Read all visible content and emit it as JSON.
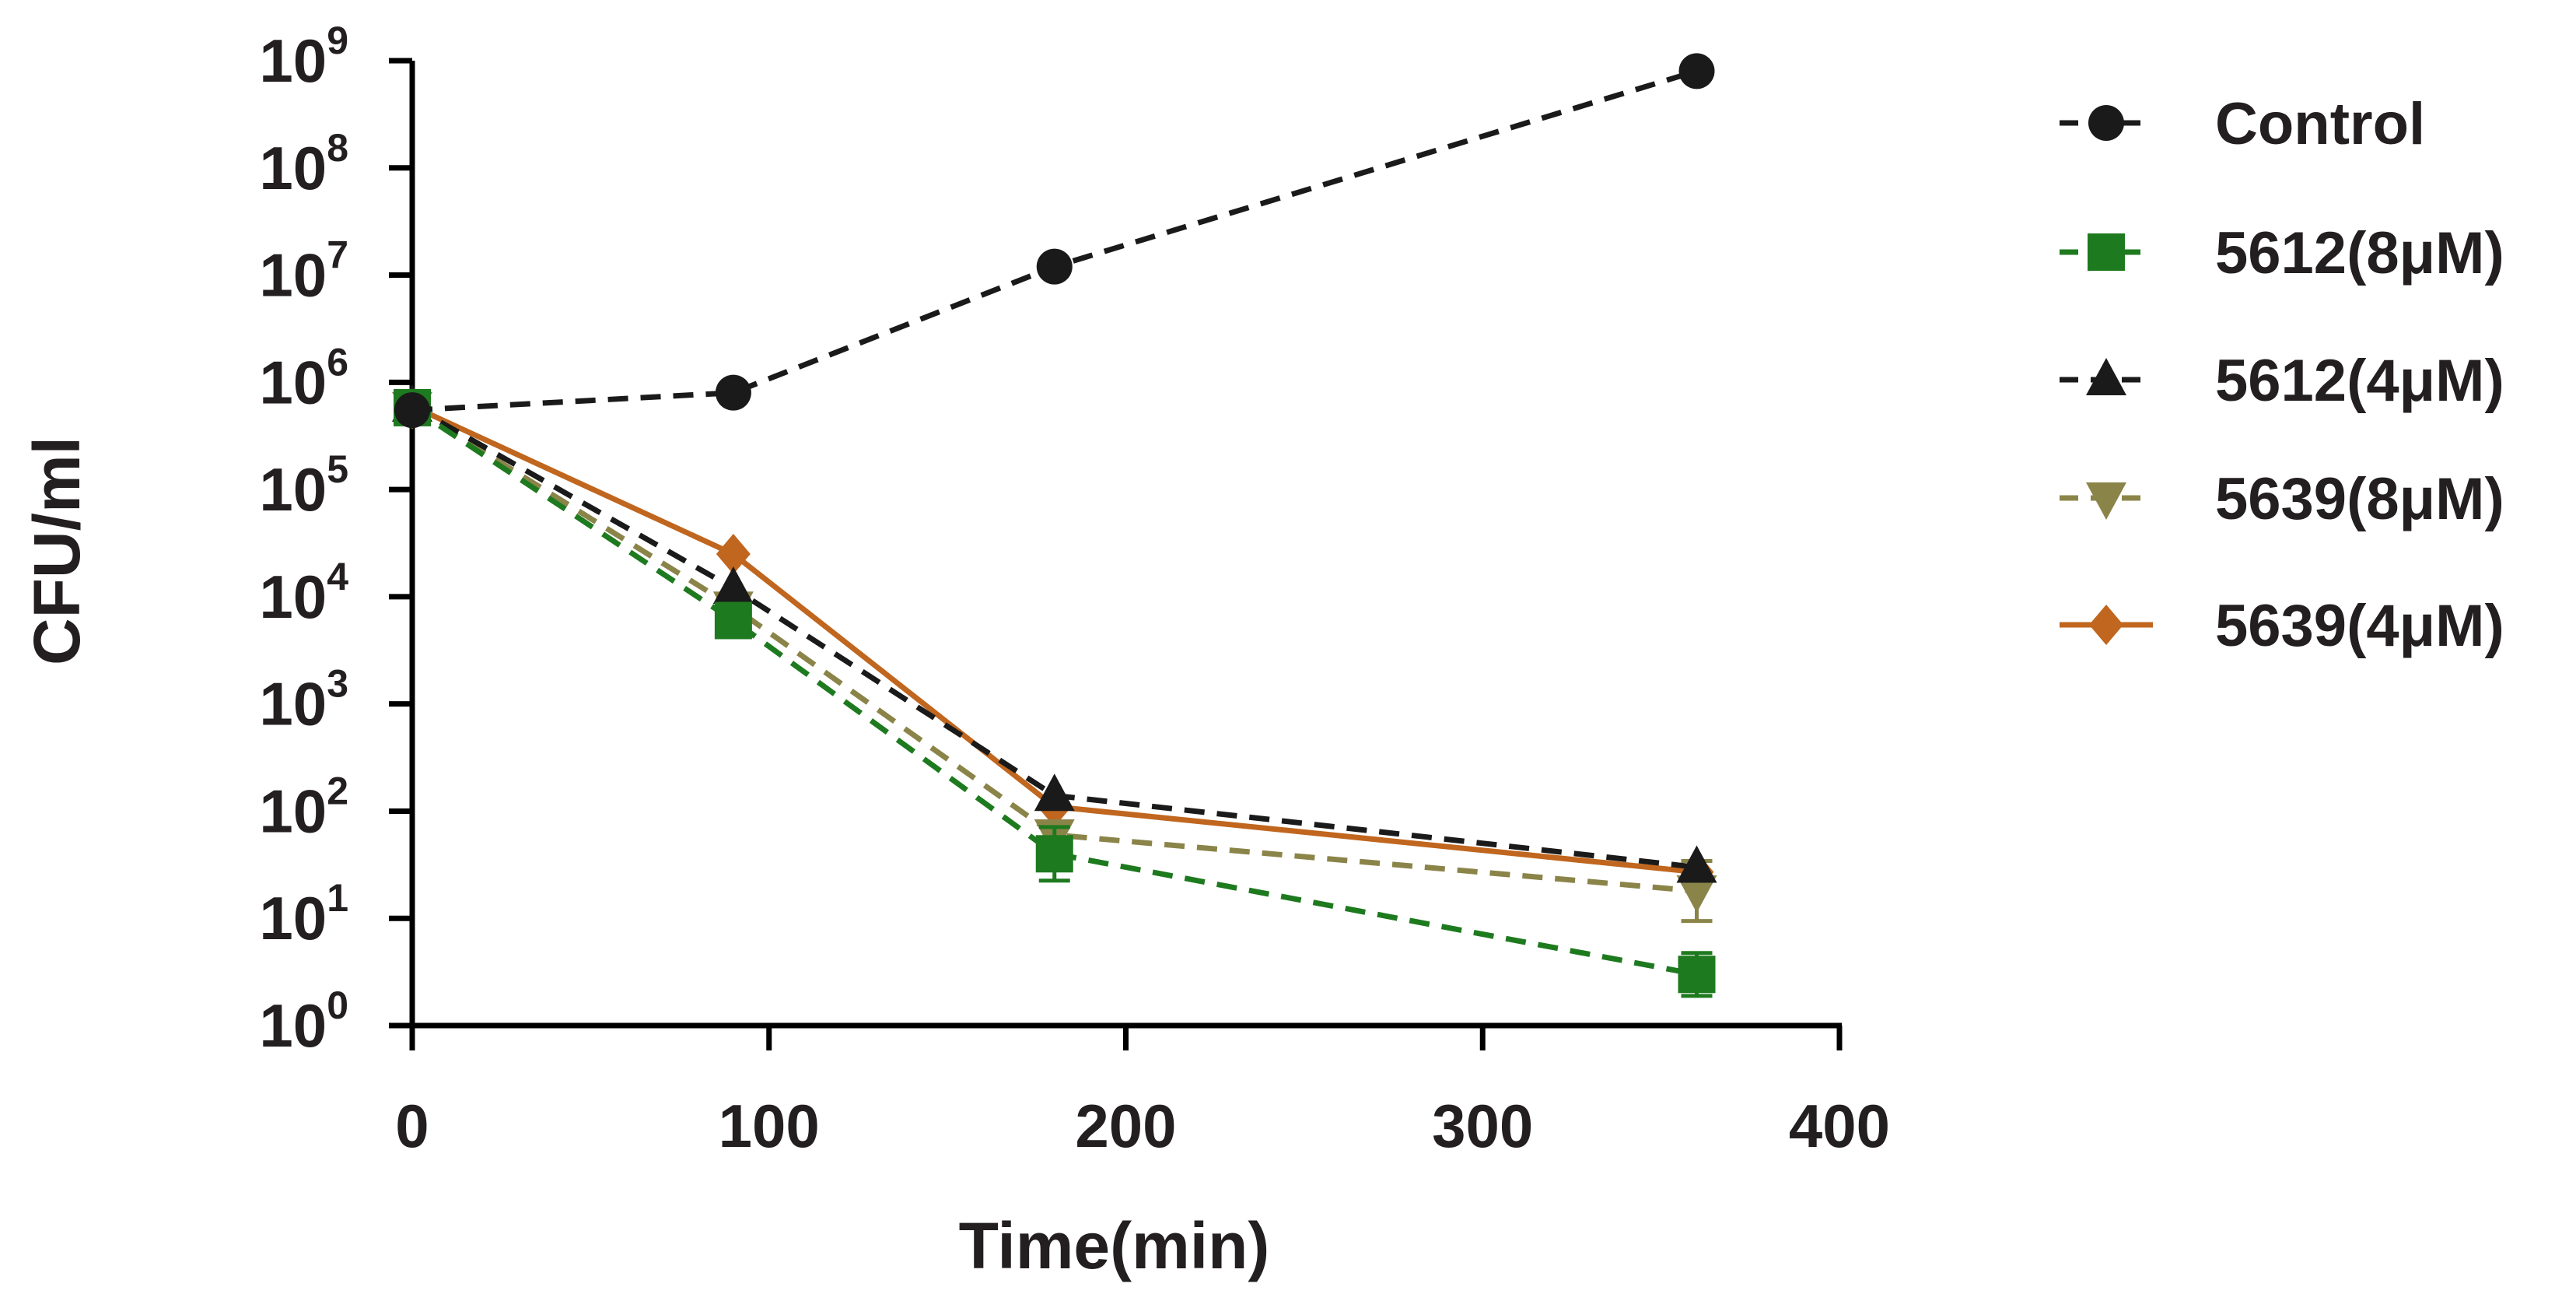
{
  "chart_data": {
    "type": "line",
    "title": "",
    "xlabel": "Time(min)",
    "ylabel": "CFU/ml",
    "xlim": [
      0,
      400
    ],
    "ylim_log10": [
      0,
      9
    ],
    "y_scale": "log10",
    "x_ticks": [
      0,
      100,
      200,
      300,
      400
    ],
    "x_tick_labels": [
      "0",
      "100",
      "200",
      "300",
      "400"
    ],
    "y_ticks": [
      {
        "base": "10",
        "exp": "0"
      },
      {
        "base": "10",
        "exp": "1"
      },
      {
        "base": "10",
        "exp": "2"
      },
      {
        "base": "10",
        "exp": "3"
      },
      {
        "base": "10",
        "exp": "4"
      },
      {
        "base": "10",
        "exp": "5"
      },
      {
        "base": "10",
        "exp": "6"
      },
      {
        "base": "10",
        "exp": "7"
      },
      {
        "base": "10",
        "exp": "8"
      },
      {
        "base": "10",
        "exp": "9"
      }
    ],
    "x": [
      0,
      90,
      180,
      360
    ],
    "legend_position": "right",
    "series": [
      {
        "name": "Control",
        "color": "#1a1a1a",
        "line": "dashed",
        "marker": "circle",
        "values": [
          550000,
          800000,
          12000000,
          800000000
        ],
        "errors_log": [
          0,
          0,
          0,
          0
        ]
      },
      {
        "name": "5612(8μM)",
        "color": "#1e7a1e",
        "line": "dashed",
        "marker": "square",
        "values": [
          580000,
          6000,
          40,
          3
        ],
        "errors_log": [
          0,
          0.1,
          0.25,
          0.2
        ]
      },
      {
        "name": "5612(4μM)",
        "color": "#1a1a1a",
        "line": "dashed",
        "marker": "triangle-up",
        "values": [
          600000,
          12000,
          140,
          30
        ],
        "errors_log": [
          0,
          0,
          0,
          0
        ]
      },
      {
        "name": "5639(8μM)",
        "color": "#8b8449",
        "line": "dashed",
        "marker": "triangle-down",
        "values": [
          580000,
          8000,
          60,
          18
        ],
        "errors_log": [
          0,
          0,
          0,
          0.28
        ]
      },
      {
        "name": "5639(4μM)",
        "color": "#c0661e",
        "line": "solid",
        "marker": "diamond",
        "values": [
          600000,
          25000,
          110,
          27
        ],
        "errors_log": [
          0,
          0,
          0,
          0
        ]
      }
    ]
  }
}
